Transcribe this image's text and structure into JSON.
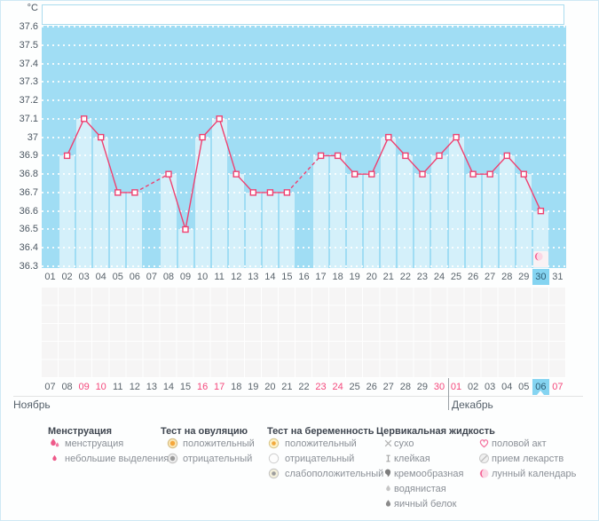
{
  "chart_data": {
    "type": "line",
    "unit": "°C",
    "title": "",
    "y_ticks": [
      "37.6",
      "37.5",
      "37.4",
      "37.3",
      "37.2",
      "37.1",
      "37",
      "36.9",
      "36.8",
      "36.7",
      "36.6",
      "36.5",
      "36.4",
      "36.3"
    ],
    "ylim": [
      36.3,
      37.6
    ],
    "days": [
      "01",
      "02",
      "03",
      "04",
      "05",
      "06",
      "07",
      "08",
      "09",
      "10",
      "11",
      "12",
      "13",
      "14",
      "15",
      "16",
      "17",
      "18",
      "19",
      "20",
      "21",
      "22",
      "23",
      "24",
      "25",
      "26",
      "27",
      "28",
      "29",
      "30",
      "31"
    ],
    "values": [
      null,
      36.9,
      37.1,
      37.0,
      36.7,
      36.7,
      null,
      36.8,
      36.5,
      37.0,
      37.1,
      36.8,
      36.7,
      36.7,
      36.7,
      null,
      36.9,
      36.9,
      36.8,
      36.8,
      37.0,
      36.9,
      36.8,
      36.9,
      37.0,
      36.8,
      36.8,
      36.9,
      36.8,
      36.6,
      null
    ],
    "current_day_index": 29,
    "moon_day_index": 29,
    "legend_position": "bottom",
    "grid": true
  },
  "calendar": {
    "dates": [
      "07",
      "08",
      "09",
      "10",
      "11",
      "12",
      "13",
      "14",
      "15",
      "16",
      "17",
      "18",
      "19",
      "20",
      "21",
      "22",
      "23",
      "24",
      "25",
      "26",
      "27",
      "28",
      "29",
      "30",
      "01",
      "02",
      "03",
      "04",
      "05",
      "06",
      "07"
    ],
    "weekend_indices": [
      2,
      3,
      9,
      10,
      16,
      17,
      23,
      24,
      30
    ],
    "current_index": 29,
    "month_left": "Ноябрь",
    "month_right": "Декабрь",
    "month_divider_index": 24
  },
  "colors": {
    "line": "#ef4070",
    "plot_bg": "#a0ddf4",
    "bar": "#cdeefa",
    "highlight": "#85d4f1",
    "weekend": "#f4487c",
    "grid_dot": "#ffffff",
    "icon_pink": "#ee5989"
  },
  "legend": {
    "columns": [
      {
        "header": "Менструация",
        "items": [
          {
            "icon": "drops-icon",
            "label": "менструация"
          },
          {
            "icon": "drop-small-icon",
            "label": "небольшие выделения"
          }
        ]
      },
      {
        "header": "Тест на овуляцию",
        "items": [
          {
            "icon": "donut-orange-icon",
            "label": "положительный"
          },
          {
            "icon": "donut-gray-icon",
            "label": "отрицательный"
          }
        ]
      },
      {
        "header": "Тест на беременность",
        "items": [
          {
            "icon": "circle-yellow-icon",
            "label": "положительный"
          },
          {
            "icon": "circle-white-icon",
            "label": "отрицательный"
          },
          {
            "icon": "circle-weak-icon",
            "label": "слабоположительный"
          }
        ]
      },
      {
        "header": "Цервикальная жидкость",
        "items": [
          {
            "icon": "x-mark-icon",
            "label": "сухо"
          },
          {
            "icon": "ibeam-icon",
            "label": "клейкая"
          },
          {
            "icon": "comma-icon",
            "label": "кремообразная"
          },
          {
            "icon": "drop-light-icon",
            "label": "водянистая"
          },
          {
            "icon": "drop-dark-icon",
            "label": "яичный белок"
          }
        ]
      },
      {
        "header": "",
        "items": [
          {
            "icon": "heart-icon",
            "label": "половой акт"
          },
          {
            "icon": "pill-icon",
            "label": "прием лекарств"
          },
          {
            "icon": "moon-icon",
            "label": "лунный календарь"
          }
        ]
      }
    ]
  }
}
